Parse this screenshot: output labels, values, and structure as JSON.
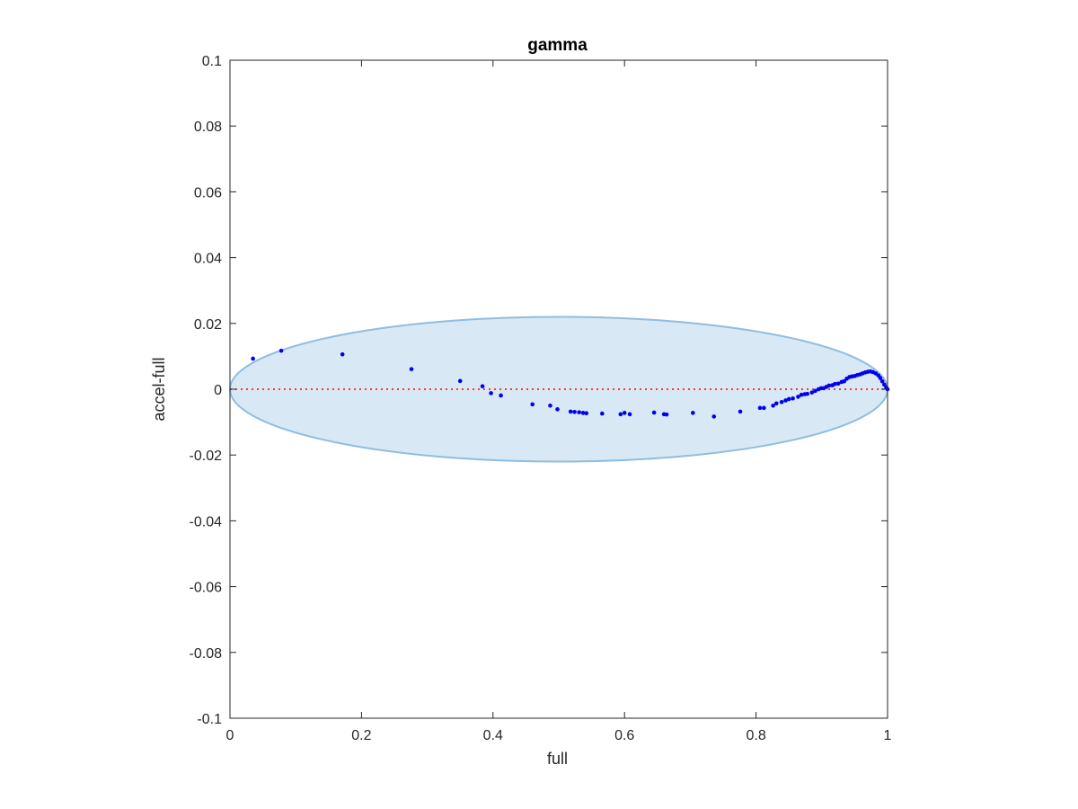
{
  "chart_data": {
    "type": "scatter",
    "title": "gamma",
    "xlabel": "full",
    "ylabel": "accel-full",
    "xlim": [
      0,
      1
    ],
    "ylim": [
      -0.1,
      0.1
    ],
    "x_ticks": [
      0,
      0.2,
      0.4,
      0.6,
      0.8,
      1
    ],
    "x_tick_labels": [
      "0",
      "0.2",
      "0.4",
      "0.6",
      "0.8",
      "1"
    ],
    "y_ticks": [
      -0.1,
      -0.08,
      -0.06,
      -0.04,
      -0.02,
      0,
      0.02,
      0.04,
      0.06,
      0.08,
      0.1
    ],
    "y_tick_labels": [
      "-0.1",
      "-0.08",
      "-0.06",
      "-0.04",
      "-0.02",
      "0",
      "0.02",
      "0.04",
      "0.06",
      "0.08",
      "0.1"
    ],
    "grid": false,
    "reference_line": {
      "y": 0,
      "style": "dotted",
      "color": "#ff0000"
    },
    "ellipse": {
      "cx": 0.5,
      "cy": 0,
      "rx": 0.5,
      "ry": 0.022,
      "fill": "#d9e8f5",
      "stroke": "#8fbde0"
    },
    "points_color": "#0000ee",
    "points": [
      {
        "x": 0.035,
        "y": 0.0093
      },
      {
        "x": 0.078,
        "y": 0.0117
      },
      {
        "x": 0.171,
        "y": 0.0106
      },
      {
        "x": 0.276,
        "y": 0.0061
      },
      {
        "x": 0.35,
        "y": 0.0025
      },
      {
        "x": 0.384,
        "y": 0.0009
      },
      {
        "x": 0.397,
        "y": -0.0012
      },
      {
        "x": 0.412,
        "y": -0.0019
      },
      {
        "x": 0.46,
        "y": -0.0046
      },
      {
        "x": 0.487,
        "y": -0.005
      },
      {
        "x": 0.498,
        "y": -0.0061
      },
      {
        "x": 0.518,
        "y": -0.0068
      },
      {
        "x": 0.524,
        "y": -0.0069
      },
      {
        "x": 0.531,
        "y": -0.007
      },
      {
        "x": 0.537,
        "y": -0.0072
      },
      {
        "x": 0.542,
        "y": -0.0073
      },
      {
        "x": 0.566,
        "y": -0.0074
      },
      {
        "x": 0.594,
        "y": -0.0076
      },
      {
        "x": 0.6,
        "y": -0.0072
      },
      {
        "x": 0.608,
        "y": -0.0076
      },
      {
        "x": 0.645,
        "y": -0.0071
      },
      {
        "x": 0.66,
        "y": -0.0076
      },
      {
        "x": 0.664,
        "y": -0.0077
      },
      {
        "x": 0.704,
        "y": -0.0072
      },
      {
        "x": 0.736,
        "y": -0.0083
      },
      {
        "x": 0.776,
        "y": -0.0068
      },
      {
        "x": 0.806,
        "y": -0.0057
      },
      {
        "x": 0.812,
        "y": -0.0057
      },
      {
        "x": 0.826,
        "y": -0.005
      },
      {
        "x": 0.831,
        "y": -0.0043
      },
      {
        "x": 0.839,
        "y": -0.0039
      },
      {
        "x": 0.845,
        "y": -0.0034
      },
      {
        "x": 0.85,
        "y": -0.003
      },
      {
        "x": 0.856,
        "y": -0.0028
      },
      {
        "x": 0.864,
        "y": -0.0023
      },
      {
        "x": 0.869,
        "y": -0.0017
      },
      {
        "x": 0.874,
        "y": -0.0015
      },
      {
        "x": 0.878,
        "y": -0.0014
      },
      {
        "x": 0.885,
        "y": -0.001
      },
      {
        "x": 0.89,
        "y": -0.0005
      },
      {
        "x": 0.895,
        "y": 0.0
      },
      {
        "x": 0.899,
        "y": 0.0003
      },
      {
        "x": 0.903,
        "y": 0.0003
      },
      {
        "x": 0.907,
        "y": 0.0007
      },
      {
        "x": 0.911,
        "y": 0.0011
      },
      {
        "x": 0.916,
        "y": 0.0012
      },
      {
        "x": 0.92,
        "y": 0.0016
      },
      {
        "x": 0.925,
        "y": 0.0017
      },
      {
        "x": 0.93,
        "y": 0.0022
      },
      {
        "x": 0.934,
        "y": 0.0024
      },
      {
        "x": 0.938,
        "y": 0.0032
      },
      {
        "x": 0.942,
        "y": 0.0037
      },
      {
        "x": 0.946,
        "y": 0.0039
      },
      {
        "x": 0.95,
        "y": 0.004
      },
      {
        "x": 0.954,
        "y": 0.0043
      },
      {
        "x": 0.958,
        "y": 0.0045
      },
      {
        "x": 0.962,
        "y": 0.0048
      },
      {
        "x": 0.966,
        "y": 0.0051
      },
      {
        "x": 0.97,
        "y": 0.0053
      },
      {
        "x": 0.974,
        "y": 0.0054
      },
      {
        "x": 0.978,
        "y": 0.0052
      },
      {
        "x": 0.982,
        "y": 0.0048
      },
      {
        "x": 0.986,
        "y": 0.0042
      },
      {
        "x": 0.989,
        "y": 0.0034
      },
      {
        "x": 0.992,
        "y": 0.0024
      },
      {
        "x": 0.995,
        "y": 0.0014
      },
      {
        "x": 0.998,
        "y": 0.0005
      },
      {
        "x": 1.0,
        "y": 0.0
      }
    ]
  }
}
